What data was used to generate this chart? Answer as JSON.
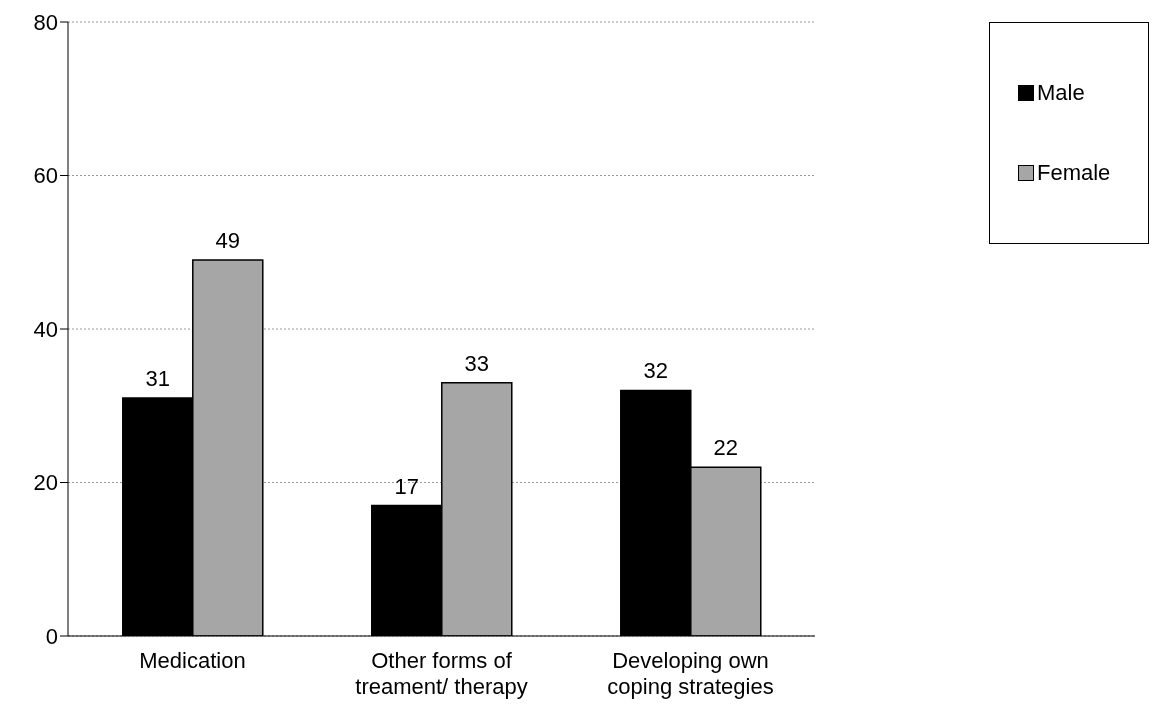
{
  "chart_data": {
    "type": "bar",
    "categories": [
      "Medication",
      "Other forms of treament/ therapy",
      "Developing own coping strategies"
    ],
    "series": [
      {
        "name": "Male",
        "color": "#000000",
        "values": [
          31,
          17,
          32
        ]
      },
      {
        "name": "Female",
        "color": "#a6a6a6",
        "values": [
          49,
          33,
          22
        ]
      }
    ],
    "ylim": [
      0,
      80
    ],
    "yticks": [
      0,
      20,
      40,
      60,
      80
    ],
    "grid": "y",
    "legend": "right",
    "data_labels": true
  }
}
